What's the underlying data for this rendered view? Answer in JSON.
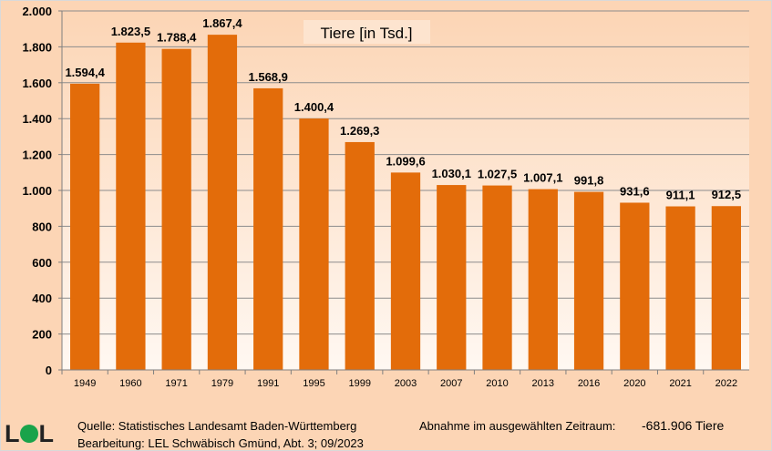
{
  "chart_data": {
    "type": "bar",
    "title": "Tiere [in Tsd.]",
    "categories": [
      "1949",
      "1960",
      "1971",
      "1979",
      "1991",
      "1995",
      "1999",
      "2003",
      "2007",
      "2010",
      "2013",
      "2016",
      "2020",
      "2021",
      "2022"
    ],
    "values": [
      1594.4,
      1823.5,
      1788.4,
      1867.4,
      1568.9,
      1400.4,
      1269.3,
      1099.6,
      1030.1,
      1027.5,
      1007.1,
      991.8,
      931.6,
      911.1,
      912.5
    ],
    "data_labels": [
      "1.594,4",
      "1.823,5",
      "1.788,4",
      "1.867,4",
      "1.568,9",
      "1.400,4",
      "1.269,3",
      "1.099,6",
      "1.030,1",
      "1.027,5",
      "1.007,1",
      "991,8",
      "931,6",
      "911,1",
      "912,5"
    ],
    "yticks": [
      0,
      200,
      400,
      600,
      800,
      1000,
      1200,
      1400,
      1600,
      1800,
      2000
    ],
    "ytick_labels": [
      "0",
      "200",
      "400",
      "600",
      "800",
      "1.000",
      "1.200",
      "1.400",
      "1.600",
      "1.800",
      "2.000"
    ],
    "ylim": [
      0,
      2000
    ],
    "grid": true,
    "bar_color": "#e36c0a",
    "xlabel": "",
    "ylabel": ""
  },
  "footer": {
    "logo": "LEL",
    "source": "Quelle: Statistisches Landesamt Baden-Württemberg",
    "edit": "Bearbeitung: LEL Schwäbisch Gmünd, Abt. 3; 09/2023",
    "decline_label": "Abnahme im ausgewählten Zeitraum:",
    "decline_value": "-681.906 Tiere"
  }
}
